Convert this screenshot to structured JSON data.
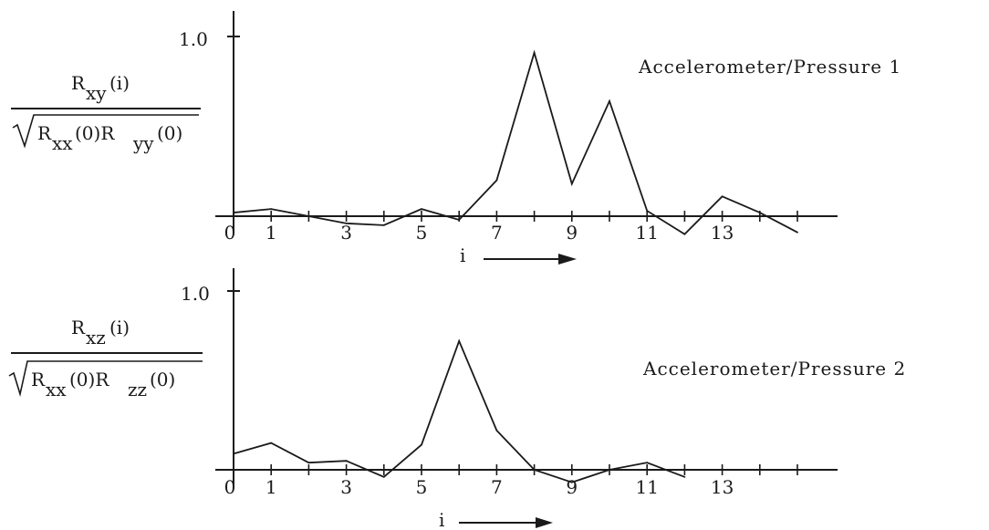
{
  "chart_data": [
    {
      "type": "line",
      "title": "Accelerometer/Pressure 1",
      "ylabel_numerator": "R",
      "ylabel_numerator_sub": "xy",
      "ylabel_numerator_arg": "(i)",
      "ylabel_denominator": "R",
      "ylabel_denominator_sub1": "xx",
      "ylabel_denominator_mid": "(0)R",
      "ylabel_denominator_sub2": "yy",
      "ylabel_denominator_tail": "(0)",
      "xlabel": "i",
      "x_tick_labels": [
        "0",
        "1",
        "3",
        "5",
        "7",
        "9",
        "11",
        "13"
      ],
      "y_tick_labels": [
        "1.0"
      ],
      "ylim": [
        -0.15,
        1.1
      ],
      "xlim": [
        0,
        16
      ],
      "x": [
        0,
        1,
        2,
        3,
        4,
        5,
        6,
        7,
        8,
        9,
        10,
        11,
        12,
        13,
        14,
        15
      ],
      "values": [
        0.02,
        0.04,
        0.0,
        -0.04,
        -0.05,
        0.04,
        -0.02,
        0.2,
        0.91,
        0.18,
        0.64,
        0.03,
        -0.1,
        0.11,
        0.02,
        -0.09
      ]
    },
    {
      "type": "line",
      "title": "Accelerometer/Pressure 2",
      "ylabel_numerator": "R",
      "ylabel_numerator_sub": "xz",
      "ylabel_numerator_arg": "(i)",
      "ylabel_denominator": "R",
      "ylabel_denominator_sub1": "xx",
      "ylabel_denominator_mid": "(0)R",
      "ylabel_denominator_sub2": "zz",
      "ylabel_denominator_tail": "(0)",
      "xlabel": "i",
      "x_tick_labels": [
        "0",
        "1",
        "3",
        "5",
        "7",
        "9",
        "11",
        "13"
      ],
      "y_tick_labels": [
        "1.0"
      ],
      "ylim": [
        -0.15,
        1.1
      ],
      "xlim": [
        0,
        16
      ],
      "x": [
        0,
        1,
        2,
        3,
        4,
        5,
        6,
        7,
        8,
        9,
        10,
        11,
        12
      ],
      "values": [
        0.09,
        0.15,
        0.04,
        0.05,
        -0.04,
        0.14,
        0.72,
        0.22,
        0.0,
        -0.07,
        0.0,
        0.04,
        -0.04
      ]
    }
  ]
}
